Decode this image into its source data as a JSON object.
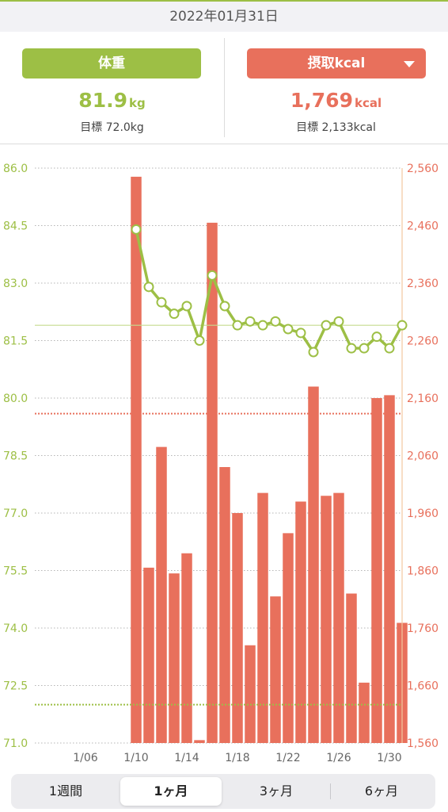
{
  "header": {
    "date": "2022年01月31日"
  },
  "colors": {
    "weight": "#9dbf45",
    "kcal": "#e8705c",
    "accent_line": "#9dbf45"
  },
  "weight": {
    "label": "体重",
    "value": "81.9",
    "unit": "kg",
    "target": "目標 72.0kg"
  },
  "kcal": {
    "label": "摂取kcal",
    "value": "1,769",
    "unit": "kcal",
    "target": "目標 2,133kcal",
    "dropdown_icon": "caret-down-icon"
  },
  "chart_data": {
    "type": "bar+line",
    "x_labels": [
      "1/06",
      "1/10",
      "1/14",
      "1/18",
      "1/22",
      "1/26",
      "1/30"
    ],
    "x_label_days": [
      6,
      10,
      14,
      18,
      22,
      26,
      30
    ],
    "x_range": [
      2,
      31
    ],
    "y_left": {
      "ticks": [
        "86.0",
        "84.5",
        "83.0",
        "81.5",
        "80.0",
        "78.5",
        "77.0",
        "75.5",
        "74.0",
        "72.5",
        "71.0"
      ],
      "min": 71.0,
      "max": 86.0,
      "unit": "kg"
    },
    "y_right": {
      "ticks": [
        "2,560",
        "2,460",
        "2,360",
        "2,260",
        "2,160",
        "2,060",
        "1,960",
        "1,860",
        "1,760",
        "1,660",
        "1,560"
      ],
      "min": 1560,
      "max": 2560,
      "unit": "kcal"
    },
    "kcal_series": {
      "days": [
        10,
        11,
        12,
        13,
        14,
        15,
        16,
        17,
        18,
        19,
        20,
        21,
        22,
        23,
        24,
        25,
        26,
        27,
        28,
        29,
        30,
        31
      ],
      "values": [
        2545,
        1865,
        2075,
        1855,
        1890,
        1565,
        2465,
        2040,
        1960,
        1730,
        1995,
        1815,
        1925,
        1980,
        2180,
        1990,
        1995,
        1820,
        1665,
        2160,
        2165,
        1769
      ]
    },
    "weight_series": {
      "days": [
        10,
        11,
        12,
        13,
        14,
        15,
        16,
        17,
        18,
        19,
        20,
        21,
        22,
        23,
        24,
        25,
        26,
        27,
        28,
        29,
        30,
        31
      ],
      "values": [
        84.4,
        82.9,
        82.5,
        82.2,
        82.4,
        81.5,
        83.2,
        82.4,
        81.9,
        82.0,
        81.9,
        82.0,
        81.8,
        81.7,
        81.2,
        81.9,
        82.0,
        81.3,
        81.3,
        81.6,
        81.3,
        81.9
      ]
    },
    "weight_current_line": 81.9,
    "kcal_target_line": 2133,
    "weight_target_line": 72.0,
    "selected_day": 31
  },
  "segments": {
    "items": [
      "1週間",
      "1ヶ月",
      "3ヶ月",
      "6ヶ月"
    ],
    "active_index": 1
  }
}
